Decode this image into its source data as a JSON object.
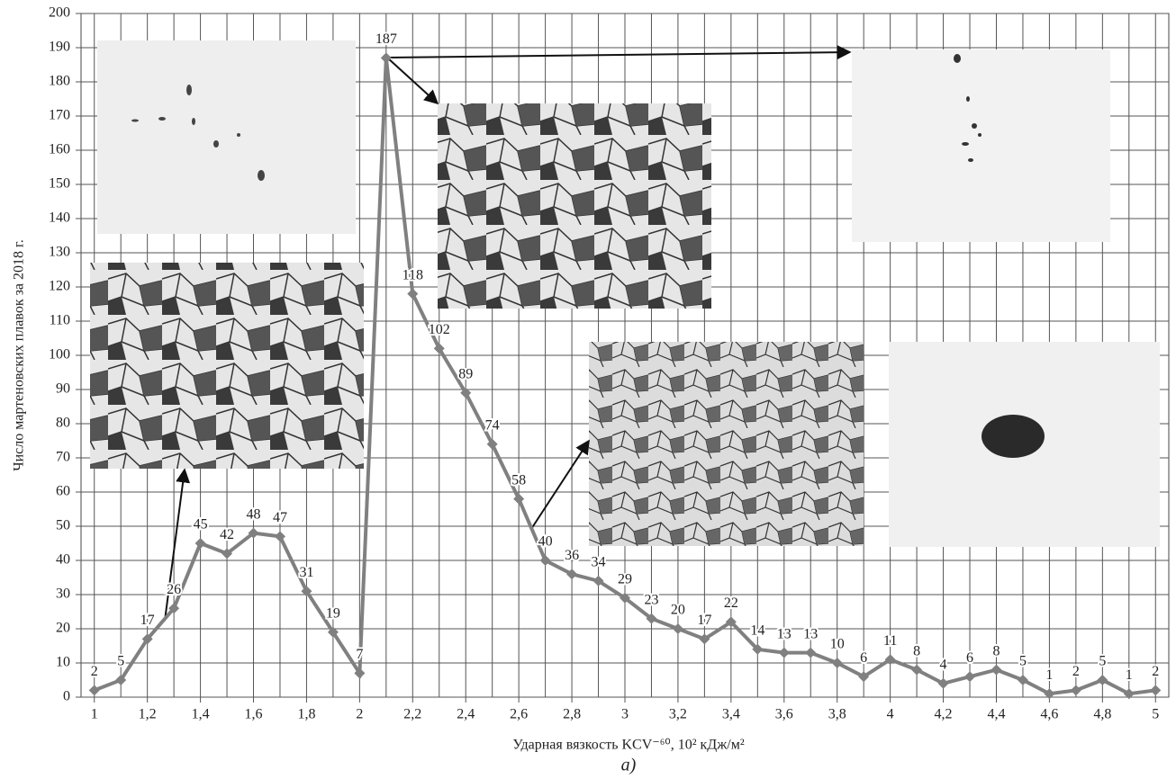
{
  "chart_data": {
    "type": "line",
    "x_label": "Ударная вязкость KCV⁻⁶⁰, 10² кДж/м²",
    "y_label": "Число мартеновских плавок за 2018 г.",
    "caption": "а)",
    "x": [
      1,
      1.1,
      1.2,
      1.3,
      1.4,
      1.5,
      1.6,
      1.7,
      1.8,
      1.9,
      2,
      2.1,
      2.2,
      2.3,
      2.4,
      2.5,
      2.6,
      2.7,
      2.8,
      2.9,
      3,
      3.1,
      3.2,
      3.3,
      3.4,
      3.5,
      3.6,
      3.7,
      3.8,
      3.9,
      4,
      4.1,
      4.2,
      4.3,
      4.4,
      4.5,
      4.6,
      4.7,
      4.8,
      4.9,
      5
    ],
    "values": [
      2,
      5,
      17,
      26,
      45,
      42,
      48,
      47,
      31,
      19,
      7,
      187,
      118,
      102,
      89,
      74,
      58,
      40,
      36,
      34,
      29,
      23,
      20,
      17,
      22,
      14,
      13,
      13,
      10,
      6,
      11,
      8,
      4,
      6,
      8,
      5,
      1,
      2,
      5,
      1,
      2
    ],
    "color": "#808080",
    "xlim": [
      0.95,
      5.05
    ],
    "ylim": [
      0,
      200
    ],
    "xticks": [
      1,
      {
        "value": 1.2,
        "label": "1,2"
      },
      {
        "value": 1.4,
        "label": "1,4"
      },
      {
        "value": 1.6,
        "label": "1,6"
      },
      {
        "value": 1.8,
        "label": "1,8"
      },
      2,
      {
        "value": 2.2,
        "label": "2,2"
      },
      {
        "value": 2.4,
        "label": "2,4"
      },
      {
        "value": 2.6,
        "label": "2,6"
      },
      {
        "value": 2.8,
        "label": "2,8"
      },
      3,
      {
        "value": 3.2,
        "label": "3,2"
      },
      {
        "value": 3.4,
        "label": "3,4"
      },
      {
        "value": 3.6,
        "label": "3,6"
      },
      {
        "value": 3.8,
        "label": "3,8"
      },
      4,
      {
        "value": 4.2,
        "label": "4,2"
      },
      {
        "value": 4.4,
        "label": "4,4"
      },
      {
        "value": 4.6,
        "label": "4,6"
      },
      {
        "value": 4.8,
        "label": "4,8"
      },
      5
    ],
    "yticks": [
      0,
      10,
      20,
      30,
      40,
      50,
      60,
      70,
      80,
      90,
      100,
      110,
      120,
      130,
      140,
      150,
      160,
      170,
      180,
      190,
      200
    ],
    "grid": true
  }
}
